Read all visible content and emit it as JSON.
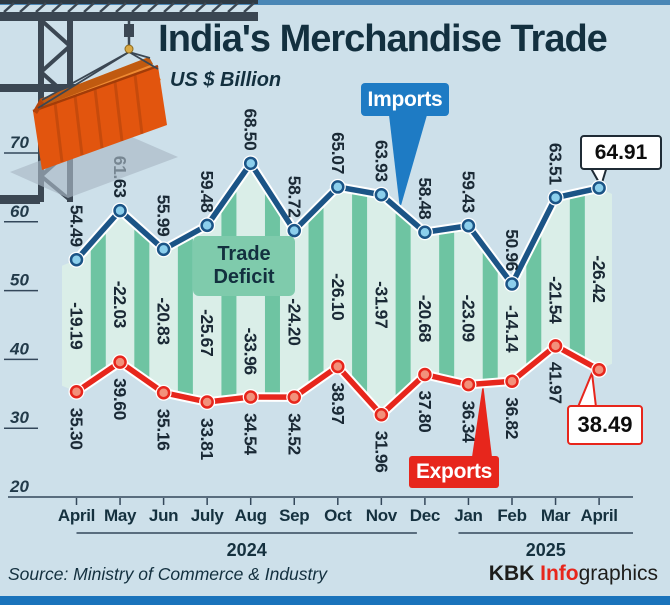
{
  "header": {
    "title": "India's Merchandise Trade",
    "subtitle": "US $ Billion"
  },
  "chart_data": {
    "type": "line",
    "unit": "US $ Billion",
    "categories": [
      "April",
      "May",
      "Jun",
      "July",
      "Aug",
      "Sep",
      "Oct",
      "Nov",
      "Dec",
      "Jan",
      "Feb",
      "Mar",
      "April"
    ],
    "year_groups": [
      {
        "label": "2024",
        "from": 0,
        "to": 8
      },
      {
        "label": "2025",
        "from": 9,
        "to": 12
      }
    ],
    "series": [
      {
        "name": "Imports",
        "color": "#1b5486",
        "values": [
          54.49,
          61.63,
          55.99,
          59.48,
          68.5,
          58.72,
          65.07,
          63.93,
          58.48,
          59.43,
          50.96,
          63.51,
          64.91
        ]
      },
      {
        "name": "Exports",
        "color": "#e7261c",
        "values": [
          35.3,
          39.6,
          35.16,
          33.81,
          34.54,
          34.52,
          38.97,
          31.96,
          37.8,
          36.34,
          36.82,
          41.97,
          38.49
        ]
      }
    ],
    "deficit": {
      "name": "Trade Deficit",
      "values": [
        -19.19,
        -22.03,
        -20.83,
        -25.67,
        -33.96,
        -24.2,
        -26.1,
        -31.97,
        -20.68,
        -23.09,
        -14.14,
        -21.54,
        -26.42
      ]
    },
    "y_axis": {
      "ticks": [
        70,
        60,
        50,
        40,
        30,
        20
      ],
      "range": [
        20,
        72
      ],
      "grid": "partial-left"
    },
    "legend": {
      "position": "floating-callout-boxes"
    },
    "callouts": {
      "imports_last": "64.91",
      "exports_last": "38.49"
    }
  },
  "footer": {
    "source": "Source: Ministry of Commerce & Industry",
    "logo": {
      "bold": "KBK",
      "accent": "Info",
      "rest": "graphics"
    }
  },
  "icons": {
    "illustration": "crane-lifting-container-icon"
  },
  "colors": {
    "background": "#cde0ea",
    "top_strip": "#4a87b6",
    "bottom_bar": "#1a73bb",
    "text": "#15313f",
    "band_light": "#daeee8",
    "band_dark": "#6ec4a2",
    "imports_line": "#1b5486",
    "imports_marker_fill": "#8ccfec",
    "exports_line": "#e7261c",
    "exports_marker_fill": "#f2917b",
    "imports_badge": "#1e7bc4",
    "exports_badge": "#e7261c",
    "deficit_badge": "#7fcbac",
    "callout_imports_border": "#1f2b35",
    "callout_exports_border": "#e7261c",
    "logo_accent": "#e7261c"
  }
}
